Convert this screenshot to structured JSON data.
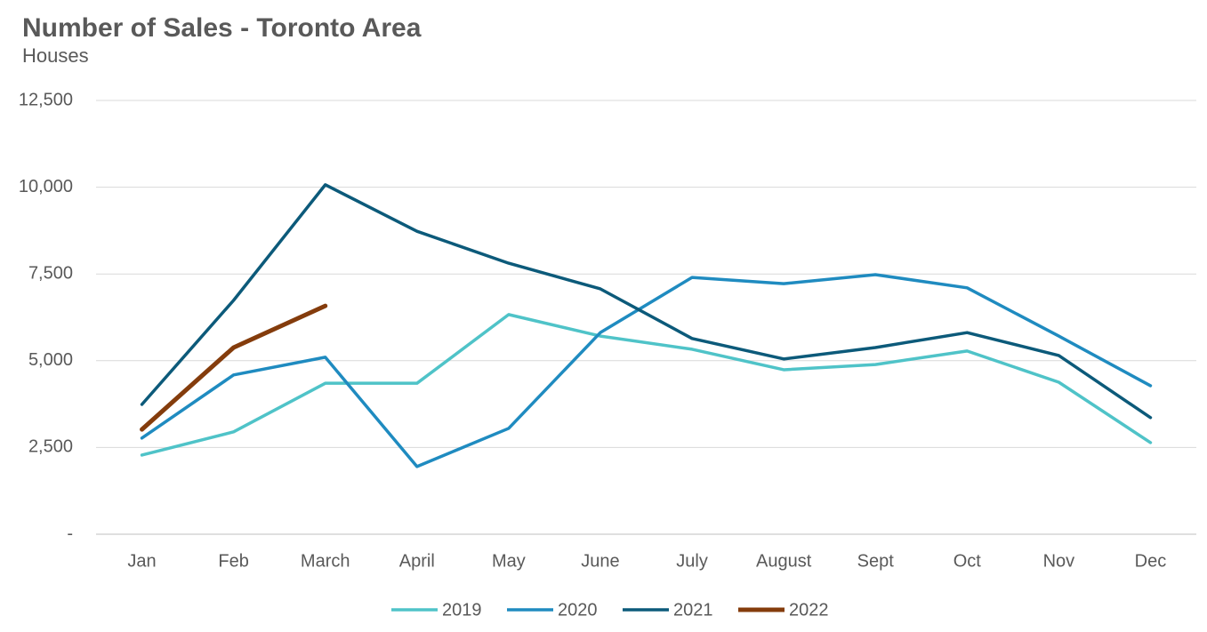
{
  "chart_data": {
    "type": "line",
    "title": "Number of Sales - Toronto Area",
    "subtitle": "Houses",
    "categories": [
      "Jan",
      "Feb",
      "March",
      "April",
      "May",
      "June",
      "July",
      "August",
      "Sept",
      "Oct",
      "Nov",
      "Dec"
    ],
    "series": [
      {
        "name": "2019",
        "color": "#4fc3c8",
        "values": [
          2280,
          2950,
          4350,
          4350,
          6330,
          5710,
          5330,
          4740,
          4890,
          5280,
          4380,
          2640
        ]
      },
      {
        "name": "2020",
        "color": "#1f8bc0",
        "values": [
          2770,
          4590,
          5100,
          1950,
          3050,
          5810,
          7400,
          7220,
          7480,
          7100,
          5710,
          4280
        ]
      },
      {
        "name": "2021",
        "color": "#0c5a7a",
        "values": [
          3740,
          6740,
          10070,
          8730,
          7810,
          7070,
          5640,
          5050,
          5380,
          5810,
          5150,
          3360
        ]
      },
      {
        "name": "2022",
        "color": "#843c0c",
        "values": [
          3020,
          5380,
          6580,
          null,
          null,
          null,
          null,
          null,
          null,
          null,
          null,
          null
        ]
      }
    ],
    "ylim": [
      0,
      12500
    ],
    "yticks": [
      {
        "value": 0,
        "label": "-"
      },
      {
        "value": 2500,
        "label": "2,500"
      },
      {
        "value": 5000,
        "label": "5,000"
      },
      {
        "value": 7500,
        "label": "7,500"
      },
      {
        "value": 10000,
        "label": "10,000"
      },
      {
        "value": 12500,
        "label": "12,500"
      }
    ],
    "grid": true,
    "legend": "bottom"
  }
}
